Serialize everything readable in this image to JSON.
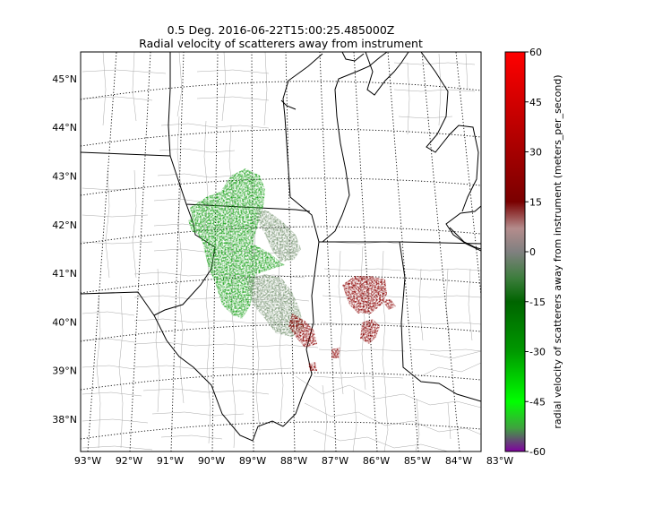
{
  "title": {
    "line1": "0.5 Deg. 2016-06-22T15:00:25.485000Z",
    "line2": "Radial velocity of scatterers away from instrument"
  },
  "map": {
    "projection": "lambert-conformal",
    "lon_ticks": [
      "93°W",
      "92°W",
      "91°W",
      "90°W",
      "89°W",
      "88°W",
      "87°W",
      "86°W",
      "85°W",
      "84°W",
      "83°W"
    ],
    "lat_ticks": [
      "38°N",
      "39°N",
      "40°N",
      "41°N",
      "42°N",
      "43°N",
      "44°N",
      "45°N"
    ],
    "graticule": "dotted",
    "boundaries": [
      "states",
      "counties",
      "coastlines"
    ],
    "echo_regions": [
      {
        "name": "northern-illinois-inbound",
        "velocity": "negative",
        "color": "#1fa31f"
      },
      {
        "name": "central-illinois-near-zero",
        "velocity": "near-zero",
        "color": "#7f9a7a"
      },
      {
        "name": "indiana-outbound",
        "velocity": "positive",
        "color": "#8b0000"
      }
    ]
  },
  "colorbar": {
    "label": "radial velocity of scatterers away from instrument (meters_per_second)",
    "ticks": [
      "60",
      "45",
      "30",
      "15",
      "0",
      "-15",
      "-30",
      "-45",
      "-60"
    ],
    "min": -60,
    "max": 60,
    "stops": [
      {
        "value": 60,
        "color": "#ff0000"
      },
      {
        "value": 30,
        "color": "#a50000"
      },
      {
        "value": 15,
        "color": "#7a0000"
      },
      {
        "value": 7,
        "color": "#b48c8c"
      },
      {
        "value": 0,
        "color": "#808080"
      },
      {
        "value": -8,
        "color": "#3c7d3c"
      },
      {
        "value": -15,
        "color": "#006400"
      },
      {
        "value": -30,
        "color": "#009900"
      },
      {
        "value": -45,
        "color": "#00ff00"
      },
      {
        "value": -53,
        "color": "#40a040"
      },
      {
        "value": -60,
        "color": "#8000a0"
      }
    ]
  }
}
